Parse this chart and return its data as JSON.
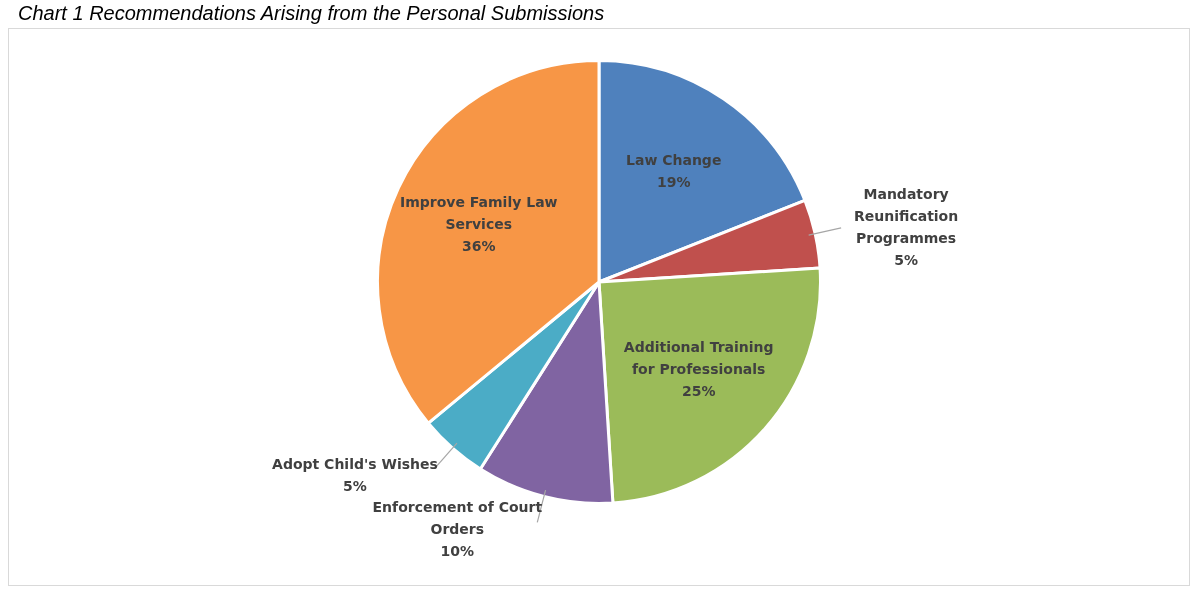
{
  "chart_data": {
    "type": "pie",
    "title": "Chart 1 Recommendations Arising from the Personal Submissions",
    "categories": [
      "Law Change",
      "Mandatory Reunification Programmes",
      "Additional Training for Professionals",
      "Enforcement of Court Orders",
      "Adopt Child's Wishes",
      "Improve Family Law Services"
    ],
    "values": [
      19,
      5,
      25,
      10,
      5,
      36
    ],
    "colors": [
      "#4f81bd",
      "#c0504d",
      "#9bbb59",
      "#8064a2",
      "#4bacc6",
      "#f79646"
    ],
    "value_labels": [
      "19%",
      "5%",
      "25%",
      "10%",
      "5%",
      "36%"
    ],
    "legend": false
  }
}
